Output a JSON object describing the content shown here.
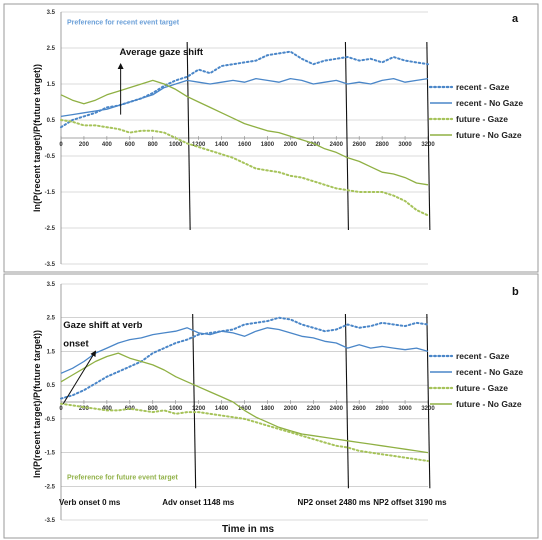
{
  "chart_data": [
    {
      "panel_label": "a",
      "type": "line",
      "xlim": [
        0,
        3200
      ],
      "ylim": [
        -3.5,
        3.5
      ],
      "x_ticks": [
        0,
        200,
        400,
        600,
        800,
        1000,
        1200,
        1400,
        1600,
        1800,
        2000,
        2200,
        2400,
        2600,
        2800,
        3000,
        3200
      ],
      "y_ticks": [
        -3.5,
        -2.5,
        -1.5,
        -0.5,
        0.5,
        1.5,
        2.5,
        3.5
      ],
      "ylabel": "ln(P(recent target)/P(future target))",
      "xlabel": "",
      "grid": true,
      "legend": "right",
      "region_labels": [
        {
          "text": "Preference for recent event target",
          "x": 0,
          "y": 3.15,
          "color": "#6a9fd8"
        }
      ],
      "annotations": [
        {
          "text": "Average gaze shift",
          "x": 510,
          "y": 2.3
        }
      ],
      "event_lines": [
        1100,
        2480,
        3190
      ],
      "gaze_arrow": {
        "x": 520,
        "y_start": 0.65,
        "y_end": 2.05
      },
      "series": [
        {
          "name": "recent - Gaze",
          "color": "#4a86c8",
          "style": "dotted",
          "x": [
            0,
            100,
            200,
            300,
            400,
            500,
            600,
            700,
            800,
            900,
            1000,
            1100,
            1200,
            1300,
            1400,
            1500,
            1600,
            1700,
            1800,
            1900,
            2000,
            2100,
            2200,
            2300,
            2400,
            2500,
            2600,
            2700,
            2800,
            2900,
            3000,
            3100,
            3200
          ],
          "values": [
            0.3,
            0.5,
            0.6,
            0.7,
            0.85,
            0.9,
            1.0,
            1.1,
            1.25,
            1.45,
            1.6,
            1.7,
            1.9,
            1.8,
            2.0,
            2.05,
            2.1,
            2.15,
            2.3,
            2.35,
            2.4,
            2.2,
            2.05,
            2.15,
            2.2,
            2.25,
            2.15,
            2.2,
            2.1,
            2.25,
            2.15,
            2.1,
            2.05
          ]
        },
        {
          "name": "recent - No Gaze",
          "color": "#4a86c8",
          "style": "solid",
          "x": [
            0,
            100,
            200,
            300,
            400,
            500,
            600,
            700,
            800,
            900,
            1000,
            1100,
            1200,
            1300,
            1400,
            1500,
            1600,
            1700,
            1800,
            1900,
            2000,
            2100,
            2200,
            2300,
            2400,
            2500,
            2600,
            2700,
            2800,
            2900,
            3000,
            3100,
            3200
          ],
          "values": [
            0.6,
            0.65,
            0.7,
            0.75,
            0.8,
            0.9,
            1.0,
            1.1,
            1.2,
            1.4,
            1.5,
            1.6,
            1.55,
            1.5,
            1.55,
            1.6,
            1.55,
            1.65,
            1.6,
            1.55,
            1.65,
            1.6,
            1.5,
            1.55,
            1.6,
            1.5,
            1.55,
            1.5,
            1.6,
            1.65,
            1.55,
            1.6,
            1.65
          ]
        },
        {
          "name": "future - Gaze",
          "color": "#a6c35a",
          "style": "dotted",
          "x": [
            0,
            100,
            200,
            300,
            400,
            500,
            600,
            700,
            800,
            900,
            1000,
            1100,
            1200,
            1300,
            1400,
            1500,
            1600,
            1700,
            1800,
            1900,
            2000,
            2100,
            2200,
            2300,
            2400,
            2500,
            2600,
            2700,
            2800,
            2900,
            3000,
            3100,
            3200
          ],
          "values": [
            0.5,
            0.45,
            0.35,
            0.35,
            0.3,
            0.25,
            0.15,
            0.2,
            0.2,
            0.15,
            0.0,
            -0.15,
            -0.25,
            -0.35,
            -0.45,
            -0.55,
            -0.7,
            -0.85,
            -0.9,
            -0.95,
            -1.05,
            -1.1,
            -1.2,
            -1.3,
            -1.4,
            -1.45,
            -1.5,
            -1.5,
            -1.5,
            -1.6,
            -1.75,
            -2.0,
            -2.15
          ]
        },
        {
          "name": "future - No Gaze",
          "color": "#8fb043",
          "style": "solid",
          "x": [
            0,
            100,
            200,
            300,
            400,
            500,
            600,
            700,
            800,
            900,
            1000,
            1100,
            1200,
            1300,
            1400,
            1500,
            1600,
            1700,
            1800,
            1900,
            2000,
            2100,
            2200,
            2300,
            2400,
            2500,
            2600,
            2700,
            2800,
            2900,
            3000,
            3100,
            3200
          ],
          "values": [
            1.2,
            1.05,
            0.95,
            1.05,
            1.2,
            1.3,
            1.4,
            1.5,
            1.6,
            1.5,
            1.35,
            1.15,
            1.0,
            0.85,
            0.7,
            0.55,
            0.4,
            0.3,
            0.2,
            0.15,
            0.05,
            -0.05,
            -0.15,
            -0.3,
            -0.4,
            -0.55,
            -0.65,
            -0.8,
            -0.95,
            -1.0,
            -1.1,
            -1.25,
            -1.3
          ]
        }
      ]
    },
    {
      "panel_label": "b",
      "type": "line",
      "xlim": [
        0,
        3200
      ],
      "ylim": [
        -3.5,
        3.5
      ],
      "x_ticks": [
        0,
        200,
        400,
        600,
        800,
        1000,
        1200,
        1400,
        1600,
        1800,
        2000,
        2200,
        2400,
        2600,
        2800,
        3000,
        3200
      ],
      "y_ticks": [
        -3.5,
        -2.5,
        -1.5,
        -0.5,
        0.5,
        1.5,
        2.5,
        3.5
      ],
      "ylabel": "ln(P(recent target)/P(future target))",
      "xlabel": "Time in ms",
      "grid": true,
      "legend": "right",
      "region_labels": [
        {
          "text": "Preference for future event target",
          "x": 0,
          "y": -2.3,
          "color": "#92b24a"
        }
      ],
      "annotations": [
        {
          "text": "Gaze shift at verb",
          "x": 20,
          "y": 2.2
        },
        {
          "text": "onset",
          "x": 20,
          "y": 1.65
        }
      ],
      "event_lines": [
        1148,
        2480,
        3190
      ],
      "event_labels": [
        {
          "text": "Verb onset 0 ms",
          "x": 0
        },
        {
          "text": "Adv onset 1148 ms",
          "x": 900
        },
        {
          "text": "NP2 onset 2480 ms",
          "x": 2080
        },
        {
          "text": "NP2 offset 3190 ms",
          "x": 2740
        }
      ],
      "gaze_arrow": {
        "x0": 20,
        "y0": -0.05,
        "x1": 300,
        "y1": 1.5
      },
      "series": [
        {
          "name": "recent - Gaze",
          "color": "#4a86c8",
          "style": "dotted",
          "x": [
            0,
            100,
            200,
            300,
            400,
            500,
            600,
            700,
            800,
            900,
            1000,
            1100,
            1200,
            1300,
            1400,
            1500,
            1600,
            1700,
            1800,
            1900,
            2000,
            2100,
            2200,
            2300,
            2400,
            2500,
            2600,
            2700,
            2800,
            2900,
            3000,
            3100,
            3200
          ],
          "values": [
            0.1,
            0.2,
            0.35,
            0.55,
            0.75,
            0.9,
            1.05,
            1.2,
            1.45,
            1.6,
            1.75,
            1.85,
            2.0,
            2.05,
            2.1,
            2.15,
            2.3,
            2.35,
            2.4,
            2.5,
            2.45,
            2.3,
            2.2,
            2.1,
            2.15,
            2.3,
            2.2,
            2.25,
            2.35,
            2.3,
            2.25,
            2.35,
            2.3
          ]
        },
        {
          "name": "recent - No Gaze",
          "color": "#4a86c8",
          "style": "solid",
          "x": [
            0,
            100,
            200,
            300,
            400,
            500,
            600,
            700,
            800,
            900,
            1000,
            1100,
            1200,
            1300,
            1400,
            1500,
            1600,
            1700,
            1800,
            1900,
            2000,
            2100,
            2200,
            2300,
            2400,
            2500,
            2600,
            2700,
            2800,
            2900,
            3000,
            3100,
            3200
          ],
          "values": [
            0.85,
            1.0,
            1.2,
            1.45,
            1.6,
            1.75,
            1.85,
            1.9,
            2.0,
            2.05,
            2.1,
            2.2,
            2.05,
            2.0,
            2.1,
            2.05,
            1.95,
            2.1,
            2.2,
            2.15,
            2.05,
            1.95,
            1.9,
            1.8,
            1.75,
            1.6,
            1.7,
            1.6,
            1.65,
            1.6,
            1.55,
            1.6,
            1.5
          ]
        },
        {
          "name": "future - Gaze",
          "color": "#a6c35a",
          "style": "dotted",
          "x": [
            0,
            100,
            200,
            300,
            400,
            500,
            600,
            700,
            800,
            900,
            1000,
            1100,
            1200,
            1300,
            1400,
            1500,
            1600,
            1700,
            1800,
            1900,
            2000,
            2100,
            2200,
            2300,
            2400,
            2500,
            2600,
            2700,
            2800,
            2900,
            3000,
            3100,
            3200
          ],
          "values": [
            -0.05,
            -0.1,
            -0.15,
            -0.2,
            -0.25,
            -0.25,
            -0.2,
            -0.25,
            -0.3,
            -0.25,
            -0.35,
            -0.3,
            -0.3,
            -0.35,
            -0.4,
            -0.45,
            -0.5,
            -0.6,
            -0.7,
            -0.8,
            -0.9,
            -1.0,
            -1.1,
            -1.2,
            -1.3,
            -1.35,
            -1.45,
            -1.5,
            -1.55,
            -1.6,
            -1.65,
            -1.7,
            -1.75
          ]
        },
        {
          "name": "future - No Gaze",
          "color": "#8fb043",
          "style": "solid",
          "x": [
            0,
            100,
            200,
            300,
            400,
            500,
            600,
            700,
            800,
            900,
            1000,
            1100,
            1200,
            1300,
            1400,
            1500,
            1600,
            1700,
            1800,
            1900,
            2000,
            2100,
            2200,
            2300,
            2400,
            2500,
            2600,
            2700,
            2800,
            2900,
            3000,
            3100,
            3200
          ],
          "values": [
            0.6,
            0.8,
            1.0,
            1.2,
            1.35,
            1.45,
            1.3,
            1.2,
            1.1,
            0.95,
            0.75,
            0.6,
            0.45,
            0.3,
            0.15,
            0.0,
            -0.25,
            -0.45,
            -0.6,
            -0.75,
            -0.85,
            -0.95,
            -1.0,
            -1.05,
            -1.1,
            -1.15,
            -1.2,
            -1.25,
            -1.3,
            -1.35,
            -1.4,
            -1.45,
            -1.5
          ]
        }
      ]
    }
  ]
}
